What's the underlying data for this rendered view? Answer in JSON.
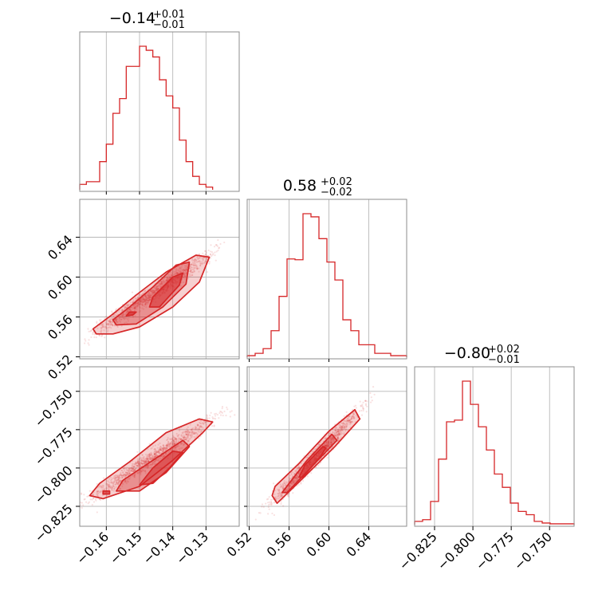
{
  "chart_data": {
    "type": "corner",
    "color": "#d62728",
    "parameters": [
      {
        "title_value": "−0.14",
        "title_plus": "+0.01",
        "title_minus": "−0.01",
        "range": [
          -0.168,
          -0.12
        ],
        "ticks": [
          -0.16,
          -0.15,
          -0.14,
          -0.13
        ],
        "tick_labels": [
          "−0.16",
          "−0.15",
          "−0.14",
          "−0.13"
        ]
      },
      {
        "title_value": "0.58",
        "title_plus": "+0.02",
        "title_minus": "−0.02",
        "range": [
          0.518,
          0.678
        ],
        "ticks": [
          0.52,
          0.56,
          0.6,
          0.64
        ],
        "tick_labels": [
          "0.52",
          "0.56",
          "0.60",
          "0.64"
        ]
      },
      {
        "title_value": "−0.80",
        "title_plus": "+0.02",
        "title_minus": "−0.01",
        "range": [
          -0.838,
          -0.734
        ],
        "ticks": [
          -0.825,
          -0.8,
          -0.775,
          -0.75
        ],
        "tick_labels": [
          "−0.825",
          "−0.800",
          "−0.775",
          "−0.750"
        ]
      }
    ],
    "histograms": [
      {
        "edges_from": -0.168,
        "bin_width": 0.002,
        "counts": [
          4,
          6,
          6,
          21,
          34,
          57,
          68,
          92,
          92,
          107,
          104,
          99,
          82,
          70,
          61,
          37,
          21,
          10,
          4,
          2
        ]
      },
      {
        "edges_from": 0.518,
        "bin_width": 0.008,
        "counts": [
          2,
          5,
          11,
          34,
          78,
          126,
          125,
          184,
          180,
          152,
          122,
          99,
          48,
          34,
          16,
          16,
          5,
          5,
          2,
          2
        ]
      },
      {
        "edges_from": -0.838,
        "bin_width": 0.0052,
        "counts": [
          4,
          6,
          28,
          79,
          124,
          126,
          173,
          145,
          118,
          90,
          61,
          45,
          26,
          16,
          12,
          4,
          2,
          1,
          1,
          1
        ]
      }
    ],
    "pairs": [
      {
        "x_param": 0,
        "y_param": 1,
        "samples": 1200,
        "contours": [
          [
            [
              -0.163,
              0.543
            ],
            [
              -0.158,
              0.543
            ],
            [
              -0.15,
              0.55
            ],
            [
              -0.14,
              0.57
            ],
            [
              -0.132,
              0.595
            ],
            [
              -0.129,
              0.62
            ],
            [
              -0.133,
              0.622
            ],
            [
              -0.142,
              0.605
            ],
            [
              -0.151,
              0.582
            ],
            [
              -0.158,
              0.563
            ],
            [
              -0.164,
              0.548
            ]
          ],
          [
            [
              -0.157,
              0.552
            ],
            [
              -0.151,
              0.553
            ],
            [
              -0.143,
              0.57
            ],
            [
              -0.136,
              0.593
            ],
            [
              -0.135,
              0.615
            ],
            [
              -0.139,
              0.612
            ],
            [
              -0.146,
              0.59
            ],
            [
              -0.153,
              0.57
            ],
            [
              -0.158,
              0.557
            ]
          ],
          [
            [
              -0.147,
              0.57
            ],
            [
              -0.144,
              0.57
            ],
            [
              -0.138,
              0.592
            ],
            [
              -0.137,
              0.604
            ],
            [
              -0.14,
              0.6
            ],
            [
              -0.146,
              0.58
            ]
          ],
          [
            [
              -0.154,
              0.561
            ],
            [
              -0.152,
              0.562
            ],
            [
              -0.151,
              0.565
            ],
            [
              -0.153,
              0.565
            ]
          ]
        ]
      },
      {
        "x_param": 0,
        "y_param": 2,
        "samples": 1200,
        "contours": [
          [
            [
              -0.165,
              -0.818
            ],
            [
              -0.161,
              -0.82
            ],
            [
              -0.15,
              -0.812
            ],
            [
              -0.14,
              -0.795
            ],
            [
              -0.131,
              -0.777
            ],
            [
              -0.128,
              -0.77
            ],
            [
              -0.132,
              -0.768
            ],
            [
              -0.142,
              -0.777
            ],
            [
              -0.153,
              -0.796
            ],
            [
              -0.162,
              -0.81
            ]
          ],
          [
            [
              -0.157,
              -0.815
            ],
            [
              -0.15,
              -0.815
            ],
            [
              -0.142,
              -0.803
            ],
            [
              -0.135,
              -0.786
            ],
            [
              -0.137,
              -0.782
            ],
            [
              -0.146,
              -0.795
            ],
            [
              -0.155,
              -0.808
            ]
          ],
          [
            [
              -0.15,
              -0.811
            ],
            [
              -0.146,
              -0.81
            ],
            [
              -0.141,
              -0.8
            ],
            [
              -0.137,
              -0.79
            ],
            [
              -0.14,
              -0.789
            ],
            [
              -0.146,
              -0.8
            ]
          ],
          [
            [
              -0.161,
              -0.817
            ],
            [
              -0.159,
              -0.817
            ],
            [
              -0.159,
              -0.815
            ],
            [
              -0.161,
              -0.815
            ]
          ]
        ]
      },
      {
        "x_param": 1,
        "y_param": 2,
        "samples": 1200,
        "contours": [
          [
            [
              0.543,
              -0.818
            ],
            [
              0.548,
              -0.823
            ],
            [
              0.575,
              -0.806
            ],
            [
              0.606,
              -0.786
            ],
            [
              0.631,
              -0.768
            ],
            [
              0.626,
              -0.762
            ],
            [
              0.6,
              -0.776
            ],
            [
              0.57,
              -0.797
            ],
            [
              0.546,
              -0.812
            ]
          ],
          [
            [
              0.553,
              -0.816
            ],
            [
              0.558,
              -0.816
            ],
            [
              0.583,
              -0.799
            ],
            [
              0.608,
              -0.782
            ],
            [
              0.603,
              -0.778
            ],
            [
              0.578,
              -0.795
            ]
          ],
          [
            [
              0.57,
              -0.806
            ],
            [
              0.574,
              -0.806
            ],
            [
              0.592,
              -0.792
            ],
            [
              0.597,
              -0.787
            ],
            [
              0.594,
              -0.786
            ],
            [
              0.576,
              -0.798
            ]
          ]
        ]
      }
    ]
  }
}
